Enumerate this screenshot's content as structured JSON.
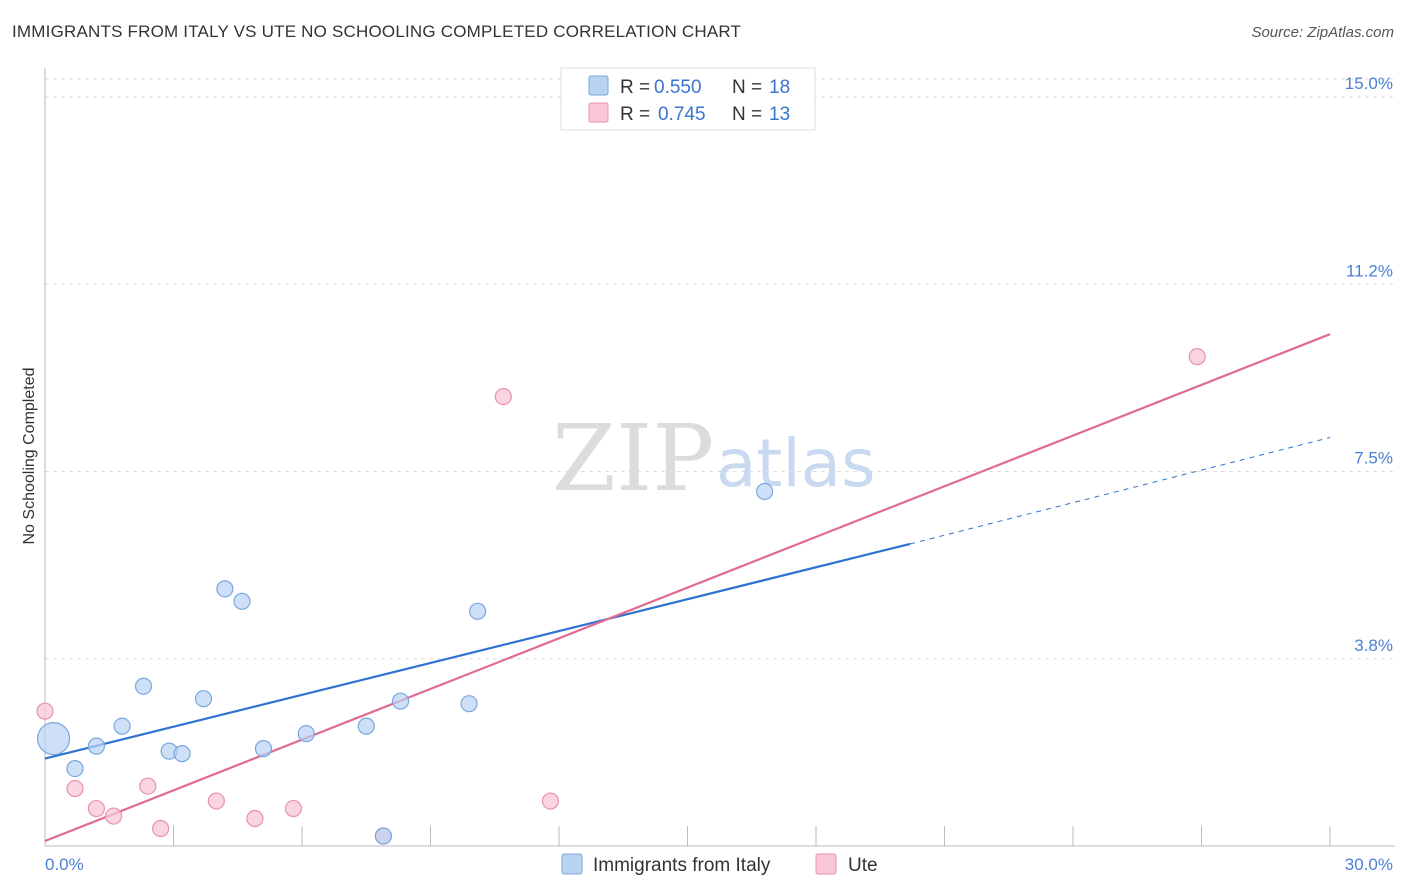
{
  "header": {
    "title": "IMMIGRANTS FROM ITALY VS UTE NO SCHOOLING COMPLETED CORRELATION CHART",
    "source": "Source: ZipAtlas.com"
  },
  "watermark": {
    "zip": "ZIP",
    "atlas": "atlas"
  },
  "legend_top": [
    {
      "r_label": "R =",
      "r_value": "0.550",
      "n_label": "N =",
      "n_value": "18"
    },
    {
      "r_label": "R =",
      "r_value": "0.745",
      "n_label": "N =",
      "n_value": "13"
    }
  ],
  "legend_bottom": [
    "Immigrants from Italy",
    "Ute"
  ],
  "colors": {
    "italy_fill": "#b9d3f3",
    "italy_stroke": "#7aa7e0",
    "italy_line": "#2f72cf",
    "ute_fill": "#f8c6d4",
    "ute_stroke": "#e892ab",
    "ute_line": "#e06a92",
    "grid": "#dddddd",
    "tick_text": "#4a7fd4"
  },
  "chart_data": {
    "type": "scatter",
    "title": "IMMIGRANTS FROM ITALY VS UTE NO SCHOOLING COMPLETED CORRELATION CHART",
    "xlabel": "",
    "ylabel": "No Schooling Completed",
    "xlim": [
      0,
      30
    ],
    "ylim": [
      0,
      15
    ],
    "y_ticks": [
      {
        "value": 3.75,
        "label": "3.8%"
      },
      {
        "value": 7.5,
        "label": "7.5%"
      },
      {
        "value": 11.25,
        "label": "11.2%"
      },
      {
        "value": 15.0,
        "label": "15.0%"
      }
    ],
    "x_tick_labels": [
      {
        "value": 0,
        "label": "0.0%"
      },
      {
        "value": 30,
        "label": "30.0%"
      }
    ],
    "series": [
      {
        "name": "Immigrants from Italy",
        "R": 0.55,
        "N": 18,
        "points": [
          {
            "x": 0.2,
            "y": 2.15,
            "size": "large"
          },
          {
            "x": 0.7,
            "y": 1.55
          },
          {
            "x": 1.2,
            "y": 2.0
          },
          {
            "x": 1.8,
            "y": 2.4
          },
          {
            "x": 2.3,
            "y": 3.2
          },
          {
            "x": 2.9,
            "y": 1.9
          },
          {
            "x": 3.2,
            "y": 1.85
          },
          {
            "x": 3.7,
            "y": 2.95
          },
          {
            "x": 4.2,
            "y": 5.15
          },
          {
            "x": 4.6,
            "y": 4.9
          },
          {
            "x": 5.1,
            "y": 1.95
          },
          {
            "x": 6.1,
            "y": 2.25
          },
          {
            "x": 7.5,
            "y": 2.4
          },
          {
            "x": 7.9,
            "y": 0.2
          },
          {
            "x": 8.3,
            "y": 2.9
          },
          {
            "x": 9.9,
            "y": 2.85
          },
          {
            "x": 10.1,
            "y": 4.7
          },
          {
            "x": 16.8,
            "y": 7.1
          }
        ],
        "trend": {
          "x0": 0,
          "y0": 1.75,
          "x1": 20.2,
          "y1": 6.05,
          "dash_to_x": 30,
          "dash_to_y": 8.18
        }
      },
      {
        "name": "Ute",
        "R": 0.745,
        "N": 13,
        "points": [
          {
            "x": 0.0,
            "y": 2.7
          },
          {
            "x": 0.7,
            "y": 1.15
          },
          {
            "x": 1.2,
            "y": 0.75
          },
          {
            "x": 1.6,
            "y": 0.6
          },
          {
            "x": 2.4,
            "y": 1.2
          },
          {
            "x": 2.7,
            "y": 0.35
          },
          {
            "x": 4.0,
            "y": 0.9
          },
          {
            "x": 4.9,
            "y": 0.55
          },
          {
            "x": 5.8,
            "y": 0.75
          },
          {
            "x": 7.9,
            "y": 0.2
          },
          {
            "x": 10.7,
            "y": 9.0
          },
          {
            "x": 11.8,
            "y": 0.9
          },
          {
            "x": 26.9,
            "y": 9.8
          }
        ],
        "trend": {
          "x0": 0,
          "y0": 0.1,
          "x1": 30,
          "y1": 10.25
        }
      }
    ]
  }
}
